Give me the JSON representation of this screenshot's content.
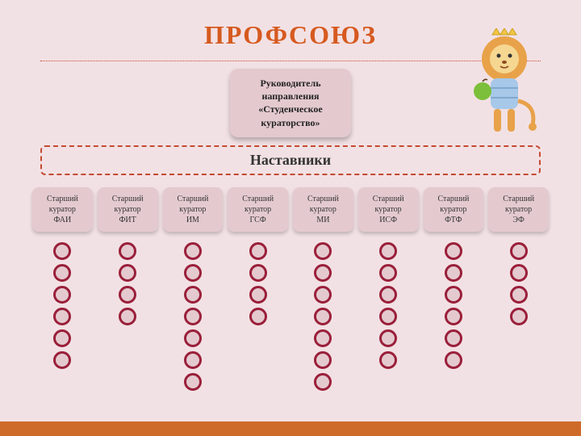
{
  "title": "ПРОФСОЮЗ",
  "title_color": "#d65a1f",
  "title_fontsize": 32,
  "background_color": "#f2e1e4",
  "dotted_line_color": "#c44a32",
  "director": {
    "line1": "Руководитель",
    "line2": "направления",
    "line3": "«Студенческое",
    "line4": "кураторство»",
    "bg_color": "#e4cacf",
    "fontsize": 12
  },
  "mentors": {
    "label": "Наставники",
    "border_color": "#c44a32",
    "fontsize": 18
  },
  "curators": [
    {
      "line1": "Старший",
      "line2": "куратор",
      "line3": "ФАИ",
      "circles": 6
    },
    {
      "line1": "Старший",
      "line2": "куратор",
      "line3": "ФИТ",
      "circles": 4
    },
    {
      "line1": "Старший",
      "line2": "куратор",
      "line3": "ИМ",
      "circles": 7
    },
    {
      "line1": "Старший",
      "line2": "куратор",
      "line3": "ГСФ",
      "circles": 4
    },
    {
      "line1": "Старший",
      "line2": "куратор",
      "line3": "МИ",
      "circles": 7
    },
    {
      "line1": "Старший",
      "line2": "куратор",
      "line3": "ИСФ",
      "circles": 6
    },
    {
      "line1": "Старший",
      "line2": "куратор",
      "line3": "ФТФ",
      "circles": 6
    },
    {
      "line1": "Старший",
      "line2": "куратор",
      "line3": "ЭФ",
      "circles": 4
    }
  ],
  "curator_box": {
    "bg_color": "#e4cacf",
    "fontsize": 10
  },
  "circle": {
    "fill": "#e4cacf",
    "stroke": "#9a1f3a",
    "size": 22
  },
  "bottom_bar_color": "#cf6b2a",
  "decoration": "lion-with-crown-holding-green-apple"
}
